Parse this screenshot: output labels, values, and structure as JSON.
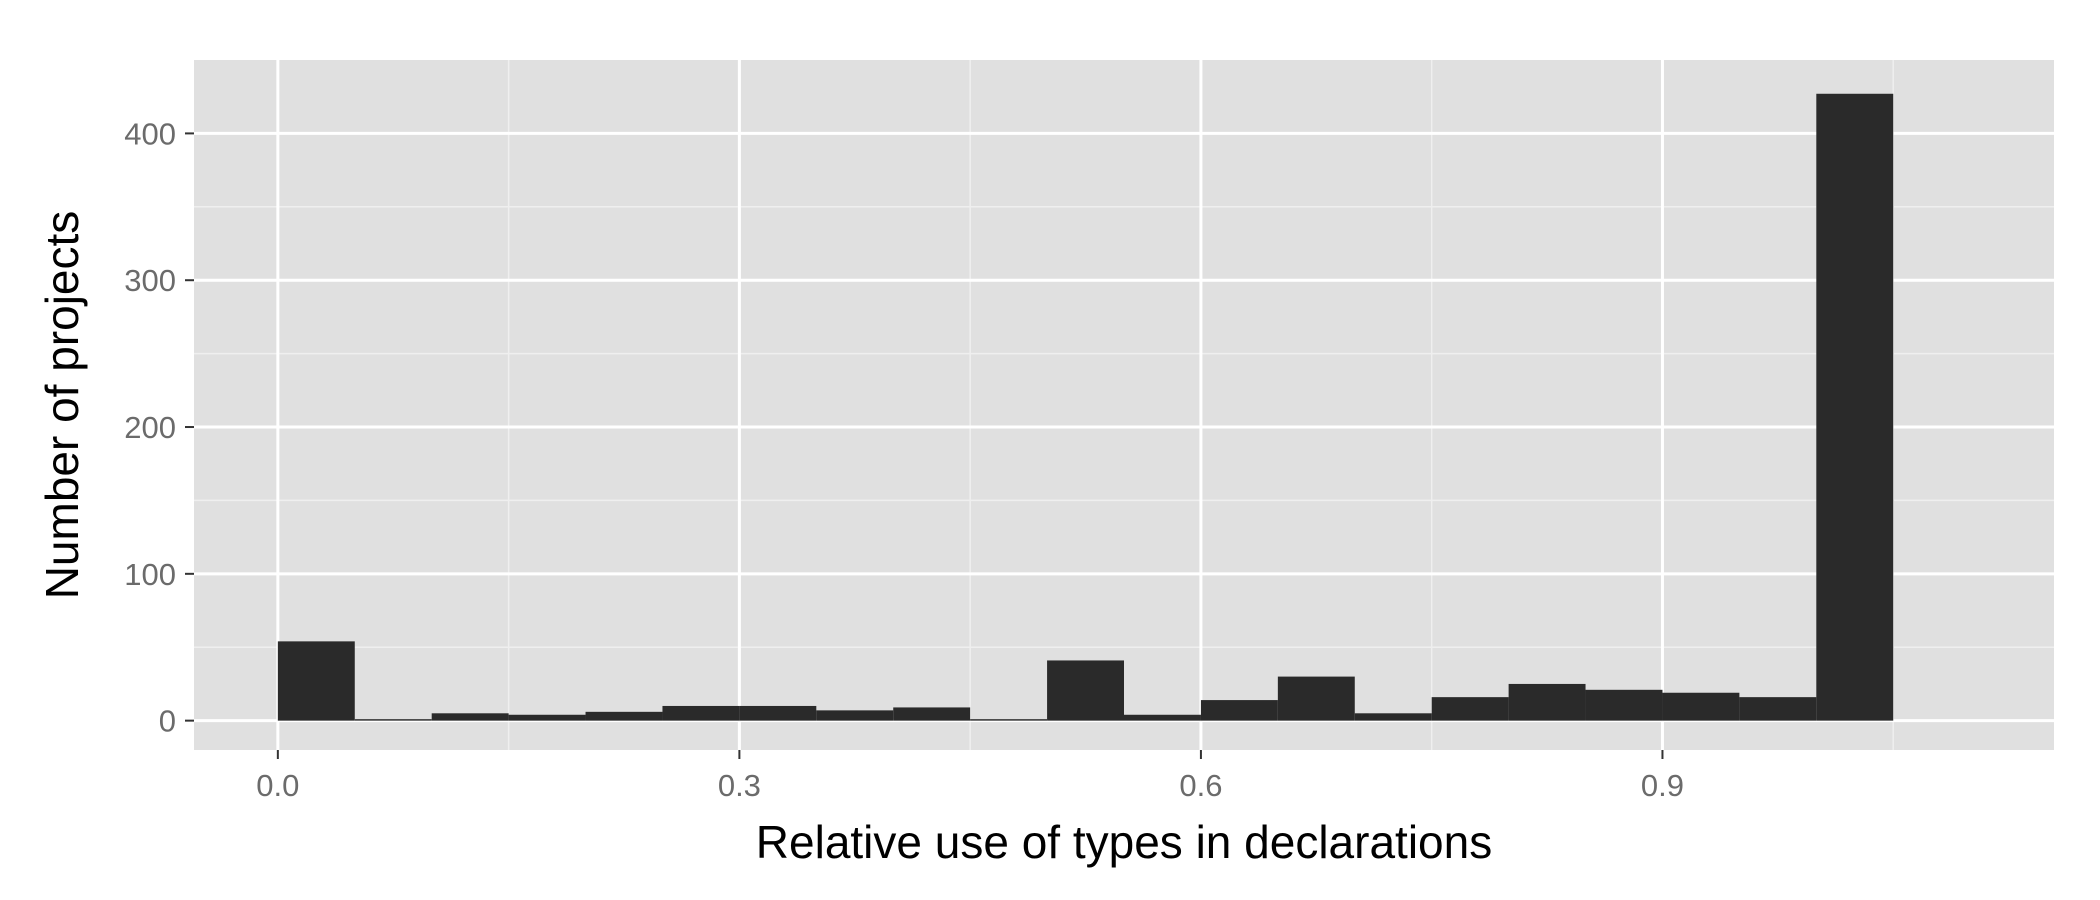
{
  "chart_data": {
    "type": "bar",
    "xlabel": "Relative use of types in declarations",
    "ylabel": "Number of projects",
    "bin_width": 0.05,
    "bins": [
      {
        "start": 0.0,
        "end": 0.05,
        "count": 54
      },
      {
        "start": 0.05,
        "end": 0.1,
        "count": 1
      },
      {
        "start": 0.1,
        "end": 0.15,
        "count": 5
      },
      {
        "start": 0.15,
        "end": 0.2,
        "count": 4
      },
      {
        "start": 0.2,
        "end": 0.25,
        "count": 6
      },
      {
        "start": 0.25,
        "end": 0.3,
        "count": 10
      },
      {
        "start": 0.3,
        "end": 0.35,
        "count": 10
      },
      {
        "start": 0.35,
        "end": 0.4,
        "count": 7
      },
      {
        "start": 0.4,
        "end": 0.45,
        "count": 9
      },
      {
        "start": 0.45,
        "end": 0.5,
        "count": 1
      },
      {
        "start": 0.5,
        "end": 0.55,
        "count": 41
      },
      {
        "start": 0.55,
        "end": 0.6,
        "count": 4
      },
      {
        "start": 0.6,
        "end": 0.65,
        "count": 14
      },
      {
        "start": 0.65,
        "end": 0.7,
        "count": 30
      },
      {
        "start": 0.7,
        "end": 0.75,
        "count": 5
      },
      {
        "start": 0.75,
        "end": 0.8,
        "count": 16
      },
      {
        "start": 0.8,
        "end": 0.85,
        "count": 25
      },
      {
        "start": 0.85,
        "end": 0.9,
        "count": 21
      },
      {
        "start": 0.9,
        "end": 0.95,
        "count": 19
      },
      {
        "start": 0.95,
        "end": 1.0,
        "count": 16
      },
      {
        "start": 1.0,
        "end": 1.05,
        "count": 427
      }
    ],
    "xlim": [
      -0.0545,
      1.1545
    ],
    "ylim": [
      -20,
      450
    ],
    "x_ticks": [
      0.0,
      0.3,
      0.6,
      0.9
    ],
    "x_tick_labels": [
      "0.0",
      "0.3",
      "0.6",
      "0.9"
    ],
    "x_minor_ticks": [
      0.15,
      0.45,
      0.75,
      1.05
    ],
    "y_ticks": [
      0,
      100,
      200,
      300,
      400
    ],
    "y_tick_labels": [
      "0",
      "100",
      "200",
      "300",
      "400"
    ],
    "y_minor_ticks": [
      50,
      150,
      250,
      350
    ],
    "grid": true,
    "colors": {
      "panel_background": "#e0e0e0",
      "grid_major": "#ffffff",
      "grid_minor": "#efefef",
      "bar_fill": "#2a2a2a",
      "tick_mark": "#333333"
    }
  }
}
